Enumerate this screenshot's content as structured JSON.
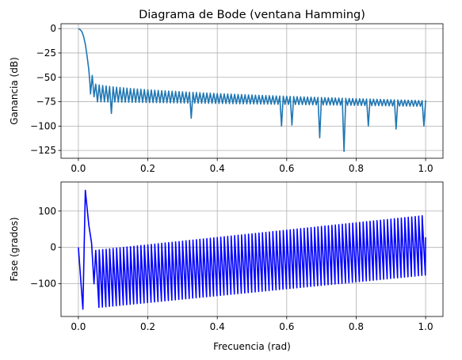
{
  "chart_data": [
    {
      "type": "line",
      "title": "Diagrama de Bode (ventana Hamming)",
      "xlabel": "",
      "ylabel": "Ganancia (dB)",
      "xlim": [
        -0.05,
        1.05
      ],
      "ylim": [
        -133,
        5
      ],
      "xticks": [
        0.0,
        0.2,
        0.4,
        0.6,
        0.8,
        1.0
      ],
      "xtick_labels": [
        "0.0",
        "0.2",
        "0.4",
        "0.6",
        "0.8",
        "1.0"
      ],
      "yticks": [
        0,
        -25,
        -50,
        -75,
        -100,
        -125
      ],
      "ytick_labels": [
        "0",
        "−25",
        "−50",
        "−75",
        "−100",
        "−125"
      ],
      "grid": true,
      "series": [
        {
          "color": "#1f77b4",
          "mainlobe": [
            [
              0.0,
              0
            ],
            [
              0.005,
              -1
            ],
            [
              0.01,
              -3
            ],
            [
              0.015,
              -8
            ],
            [
              0.02,
              -16
            ],
            [
              0.025,
              -28
            ],
            [
              0.03,
              -42
            ],
            [
              0.033,
              -55
            ]
          ],
          "first_sidelobe_level": -48,
          "sidelobe_level_start": -55,
          "sidelobe_level_end": -74,
          "sidelobe_spacing": 0.01,
          "null_depth_typical": -75,
          "deep_nulls": [
            [
              0.035,
              -67
            ],
            [
              0.045,
              -70
            ],
            [
              0.095,
              -87
            ],
            [
              0.325,
              -92
            ],
            [
              0.585,
              -100
            ],
            [
              0.615,
              -99
            ],
            [
              0.695,
              -112
            ],
            [
              0.765,
              -126
            ],
            [
              0.835,
              -100
            ],
            [
              0.915,
              -103
            ],
            [
              0.995,
              -100
            ]
          ]
        }
      ]
    },
    {
      "type": "line",
      "title": "",
      "xlabel": "Frecuencia (rad)",
      "ylabel": "Fase (grados)",
      "xlim": [
        -0.05,
        1.05
      ],
      "ylim": [
        -190,
        180
      ],
      "xticks": [
        0.0,
        0.2,
        0.4,
        0.6,
        0.8,
        1.0
      ],
      "xtick_labels": [
        "0.0",
        "0.2",
        "0.4",
        "0.6",
        "0.8",
        "1.0"
      ],
      "yticks": [
        100,
        0,
        -100
      ],
      "ytick_labels": [
        "100",
        "0",
        "−100"
      ],
      "grid": true,
      "series": [
        {
          "color": "#0000ff",
          "start_points": [
            [
              0.0,
              0
            ],
            [
              0.013,
              -170
            ],
            [
              0.02,
              157
            ],
            [
              0.03,
              62
            ],
            [
              0.038,
              12
            ],
            [
              0.045,
              -100
            ]
          ],
          "sawtooth_period": 0.01,
          "sawtooth_high_start": -8,
          "sawtooth_low_start": -165,
          "sawtooth_high_end": 88,
          "sawtooth_low_end": -75,
          "end_point": [
            1.0,
            28
          ]
        }
      ]
    }
  ]
}
